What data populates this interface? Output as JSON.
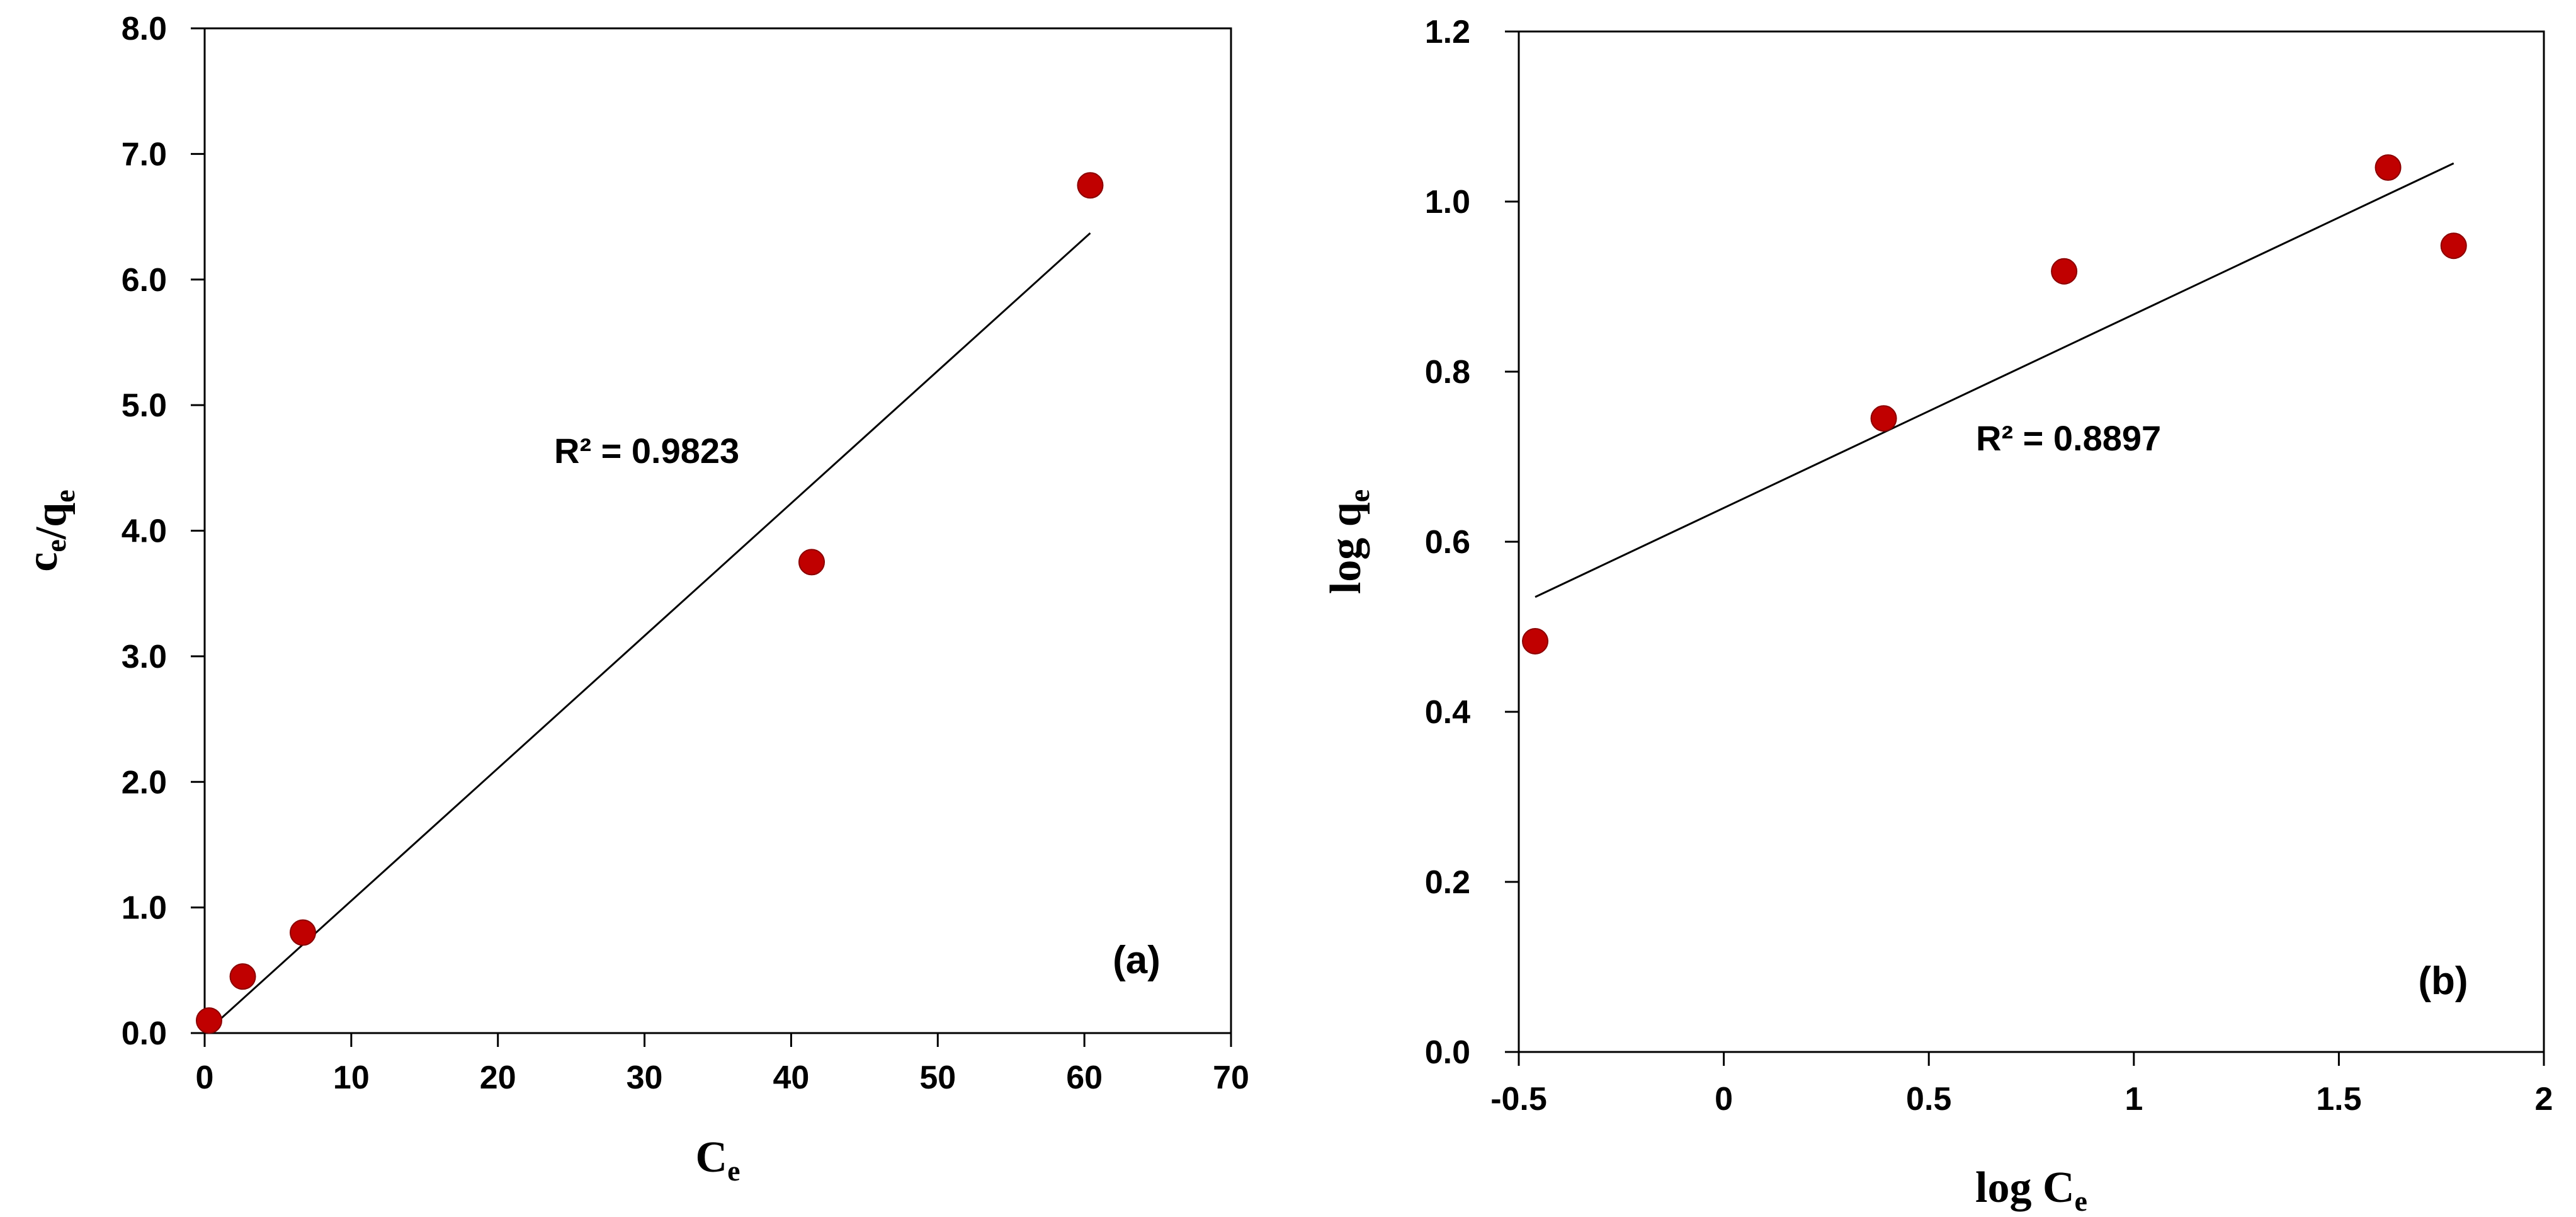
{
  "chart_data": [
    {
      "type": "scatter",
      "panel_label": "(a)",
      "xlabel": "C",
      "xlabel_sub": "e",
      "ylabel_parts": [
        {
          "text": "c",
          "sub": "e"
        },
        {
          "text": "/q",
          "sub": "e"
        }
      ],
      "xlim": [
        0,
        70
      ],
      "ylim": [
        0,
        8
      ],
      "xticks": [
        "0",
        "10",
        "20",
        "30",
        "40",
        "50",
        "60",
        "70"
      ],
      "yticks": [
        "0.0",
        "1.0",
        "2.0",
        "3.0",
        "4.0",
        "5.0",
        "6.0",
        "7.0",
        "8.0"
      ],
      "points": [
        {
          "x": 0.3,
          "y": 0.1
        },
        {
          "x": 2.6,
          "y": 0.45
        },
        {
          "x": 6.7,
          "y": 0.8
        },
        {
          "x": 41.4,
          "y": 3.75
        },
        {
          "x": 60.4,
          "y": 6.75
        }
      ],
      "trendline": {
        "x": [
          0.3,
          60.4
        ],
        "y": [
          0.03,
          6.37
        ]
      },
      "annotation": "R² = 0.9823",
      "point_color": "#c00000",
      "grid": false
    },
    {
      "type": "scatter",
      "panel_label": "(b)",
      "xlabel": "log C",
      "xlabel_sub": "e",
      "ylabel_parts": [
        {
          "text": "log  q",
          "sub": "e"
        }
      ],
      "xlim": [
        -0.5,
        2
      ],
      "ylim": [
        0,
        1.2
      ],
      "xticks": [
        "-0.5",
        "0",
        "0.5",
        "1",
        "1.5",
        "2"
      ],
      "yticks": [
        "0.0",
        "0.2",
        "0.4",
        "0.6",
        "0.8",
        "1.0",
        "1.2"
      ],
      "points": [
        {
          "x": -0.46,
          "y": 0.483
        },
        {
          "x": 0.39,
          "y": 0.745
        },
        {
          "x": 0.83,
          "y": 0.918
        },
        {
          "x": 1.62,
          "y": 1.04
        },
        {
          "x": 1.78,
          "y": 0.948
        }
      ],
      "trendline": {
        "x": [
          -0.46,
          1.78
        ],
        "y": [
          0.535,
          1.045
        ]
      },
      "annotation": "R² = 0.8897",
      "point_color": "#c00000",
      "grid": false
    }
  ]
}
